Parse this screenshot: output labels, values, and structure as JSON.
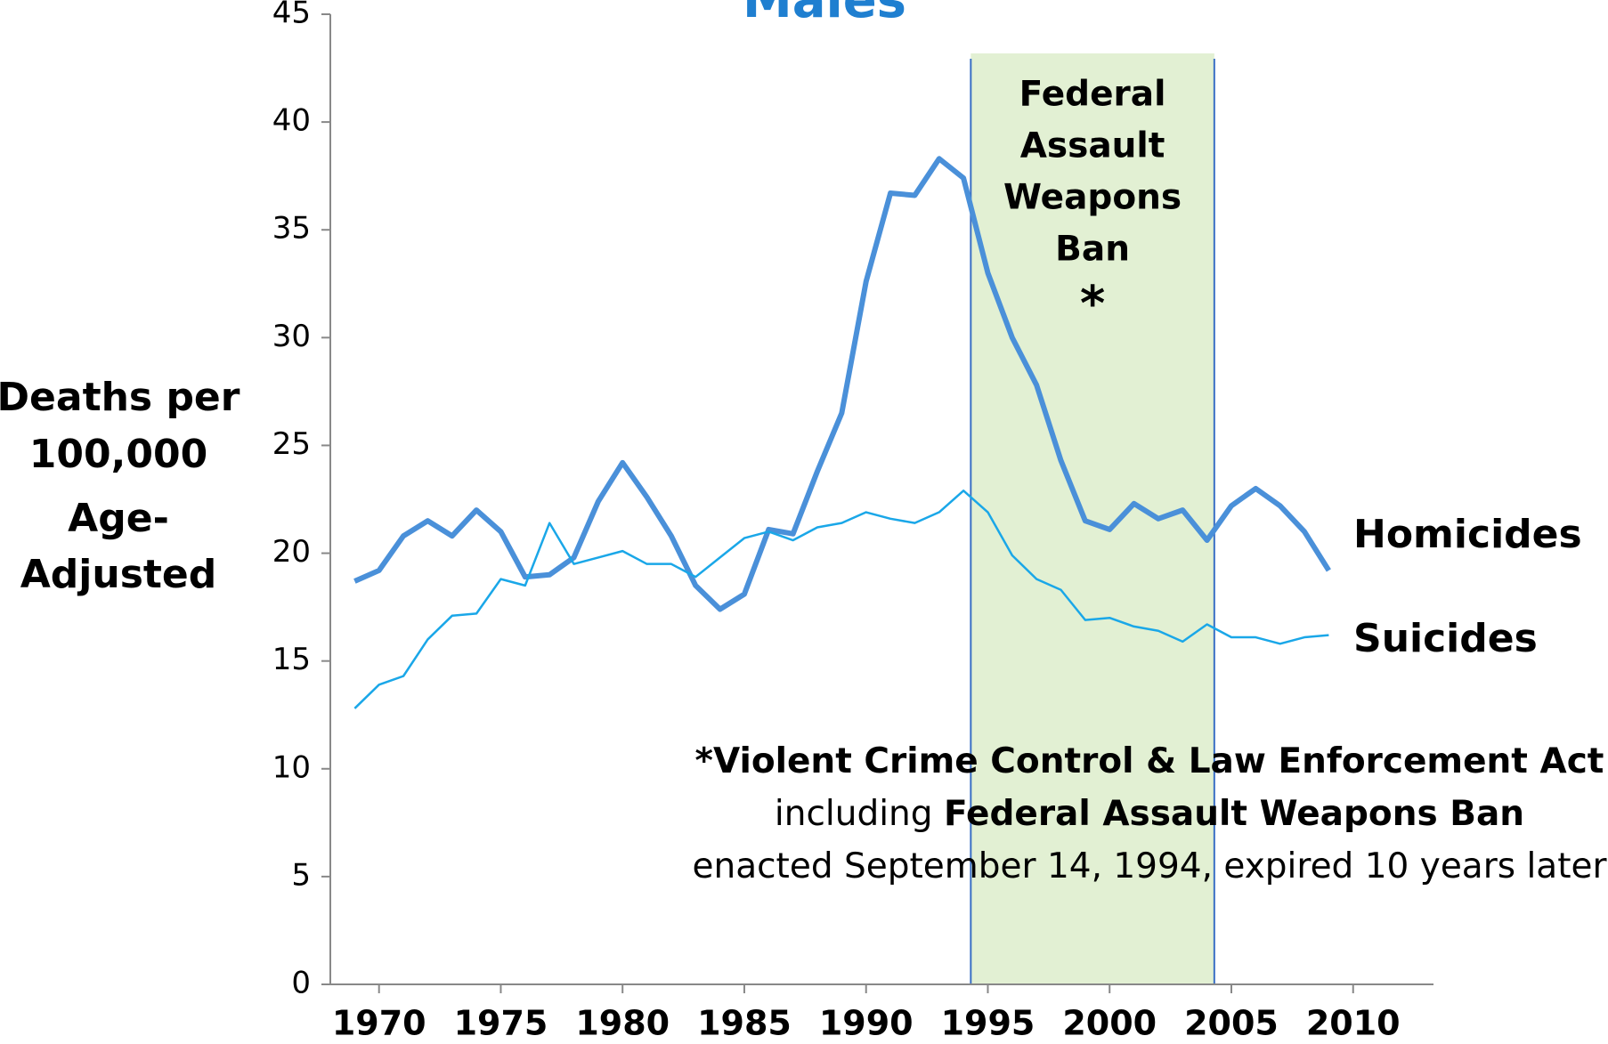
{
  "chart_data": {
    "type": "line",
    "title": "Males",
    "y_label": [
      "Deaths per",
      "100,000",
      "Age-",
      "Adjusted"
    ],
    "x": [
      1969,
      1970,
      1971,
      1972,
      1973,
      1974,
      1975,
      1976,
      1977,
      1978,
      1979,
      1980,
      1981,
      1982,
      1983,
      1984,
      1985,
      1986,
      1987,
      1988,
      1989,
      1990,
      1991,
      1992,
      1993,
      1994,
      1995,
      1996,
      1997,
      1998,
      1999,
      2000,
      2001,
      2002,
      2003,
      2004,
      2005,
      2006,
      2007,
      2008,
      2009
    ],
    "series": [
      {
        "name": "Homicides",
        "color": "#4a90d9",
        "width": 6,
        "values": [
          18.7,
          19.2,
          20.8,
          21.5,
          20.8,
          22.0,
          21.0,
          18.9,
          19.0,
          19.8,
          22.4,
          24.2,
          22.6,
          20.8,
          18.5,
          17.4,
          18.1,
          21.1,
          20.9,
          23.8,
          26.5,
          32.6,
          36.7,
          36.6,
          38.3,
          37.4,
          33.0,
          30.0,
          27.8,
          24.3,
          21.5,
          21.1,
          22.3,
          21.6,
          22.0,
          20.6,
          22.2,
          23.0,
          22.2,
          21.0,
          19.2
        ]
      },
      {
        "name": "Suicides",
        "color": "#1aa7e8",
        "width": 2.5,
        "values": [
          12.8,
          13.9,
          14.3,
          16.0,
          17.1,
          17.2,
          18.8,
          18.5,
          21.4,
          19.5,
          19.8,
          20.1,
          19.5,
          19.5,
          18.9,
          19.8,
          20.7,
          21.0,
          20.6,
          21.2,
          21.4,
          21.9,
          21.6,
          21.4,
          21.9,
          22.9,
          21.9,
          19.9,
          18.8,
          18.3,
          16.9,
          17.0,
          16.6,
          16.4,
          15.9,
          16.7,
          16.1,
          16.1,
          15.8,
          16.1,
          16.2
        ]
      }
    ],
    "xlim": [
      1968,
      2013.3
    ],
    "xticks": [
      1970,
      1975,
      1980,
      1985,
      1990,
      1995,
      2000,
      2005,
      2010
    ],
    "ylim": [
      0,
      45
    ],
    "yticks": [
      0,
      5,
      10,
      15,
      20,
      25,
      30,
      35,
      40,
      45
    ],
    "band": {
      "x": [
        1994.3,
        2004.3
      ],
      "color": "#e2f0d3",
      "edge_color": "#3a6fc4",
      "label": [
        "Federal",
        "Assault",
        "Weapons",
        "Ban"
      ],
      "marker": "*"
    },
    "footnote": [
      [
        {
          "text": "*",
          "bold": true
        },
        {
          "text": "Violent Crime Control & Law Enforcement Act",
          "bold": true
        }
      ],
      [
        {
          "text": "including ",
          "bold": false
        },
        {
          "text": "Federal Assault Weapons Ban",
          "bold": true
        }
      ],
      [
        {
          "text": "enacted September 14, 1994, expired 10 years later",
          "bold": false
        }
      ]
    ]
  }
}
